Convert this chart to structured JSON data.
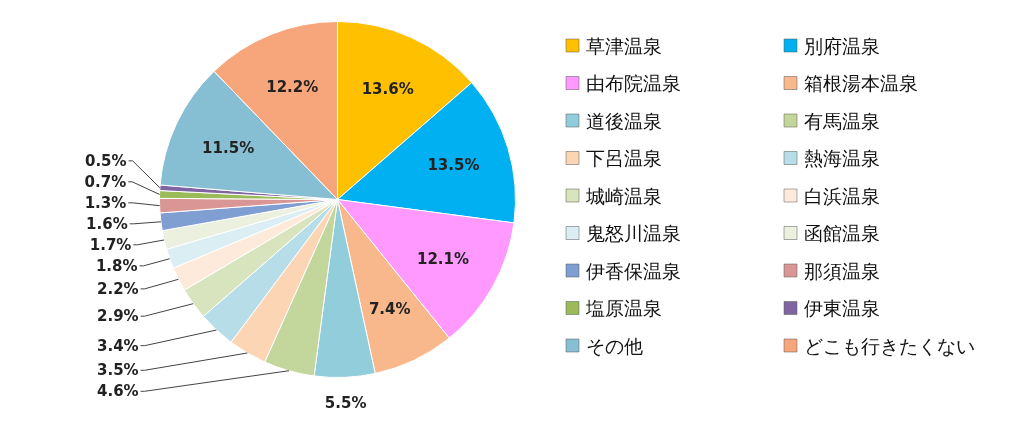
{
  "chart_data": {
    "type": "pie",
    "categories": [
      "草津温泉",
      "別府温泉",
      "由布院温泉",
      "箱根湯本温泉",
      "道後温泉",
      "有馬温泉",
      "下呂温泉",
      "熱海温泉",
      "城崎温泉",
      "白浜温泉",
      "鬼怒川温泉",
      "函館温泉",
      "伊香保温泉",
      "那須温泉",
      "塩原温泉",
      "伊東温泉",
      "その他",
      "どこも行きたくない"
    ],
    "values": [
      13.6,
      13.5,
      12.1,
      7.4,
      5.5,
      4.6,
      3.5,
      3.4,
      2.9,
      2.2,
      1.8,
      1.7,
      1.6,
      1.3,
      0.7,
      0.5,
      11.5,
      12.2
    ],
    "value_labels": [
      "13.6%",
      "13.5%",
      "12.1%",
      "7.4%",
      "5.5%",
      "4.6%",
      "3.5%",
      "3.4%",
      "2.9%",
      "2.2%",
      "1.8%",
      "1.7%",
      "1.6%",
      "1.3%",
      "0.7%",
      "0.5%",
      "11.5%",
      "12.2%"
    ],
    "colors": [
      "#ffc000",
      "#00b0f0",
      "#ff99ff",
      "#f8b88b",
      "#92cddc",
      "#c3d69b",
      "#fcd5b5",
      "#b7dee8",
      "#d7e4bd",
      "#fdeada",
      "#dbeef4",
      "#ebf1de",
      "#7f9fd3",
      "#d99694",
      "#9bbb59",
      "#8064a2",
      "#86bfd3",
      "#f7a57b"
    ],
    "legend": "right"
  }
}
